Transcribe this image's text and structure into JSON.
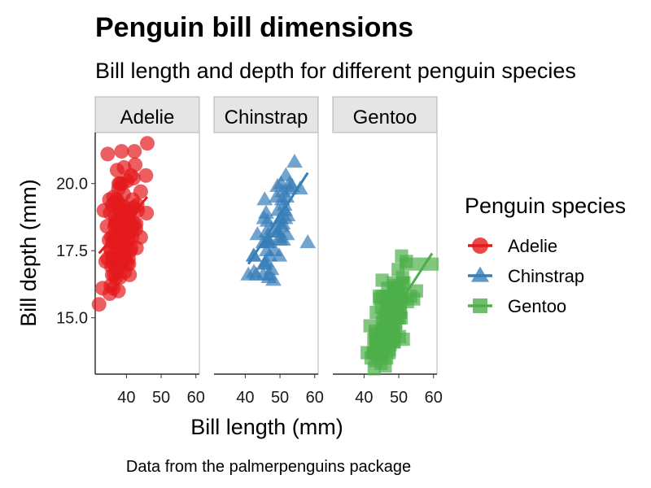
{
  "colors": {
    "Adelie": "#e41a1c",
    "Chinstrap": "#377eb8",
    "Gentoo": "#4daf4a",
    "strip_fill": "#e5e5e5",
    "strip_border": "#b3b3b3"
  },
  "chart_data": {
    "type": "scatter",
    "title": "Penguin bill dimensions",
    "subtitle": "Bill length and depth for different penguin species",
    "xlabel": "Bill length (mm)",
    "ylabel": "Bill depth (mm)",
    "caption": "Data from the palmerpenguins package",
    "legend_title": "Penguin species",
    "legend_position": "right",
    "xlim": [
      31,
      61
    ],
    "ylim": [
      12.9,
      21.9
    ],
    "x_ticks": [
      40,
      50,
      60
    ],
    "y_ticks": [
      15.0,
      17.5,
      20.0
    ],
    "y_tick_labels": [
      "15.0",
      "17.5",
      "20.0"
    ],
    "facets": [
      {
        "name": "Adelie",
        "shape": "circle",
        "regression": {
          "x": [
            32.1,
            46.0
          ],
          "y": [
            17.4,
            19.5
          ]
        },
        "points": [
          [
            32.1,
            15.5
          ],
          [
            33.1,
            16.1
          ],
          [
            33.5,
            19.0
          ],
          [
            34.0,
            17.1
          ],
          [
            34.4,
            18.4
          ],
          [
            34.6,
            21.1
          ],
          [
            34.6,
            17.2
          ],
          [
            35.0,
            17.9
          ],
          [
            35.1,
            19.4
          ],
          [
            35.2,
            15.9
          ],
          [
            35.3,
            18.9
          ],
          [
            35.5,
            16.2
          ],
          [
            35.5,
            17.5
          ],
          [
            35.6,
            17.5
          ],
          [
            35.7,
            16.9
          ],
          [
            35.7,
            18.0
          ],
          [
            35.9,
            16.6
          ],
          [
            35.9,
            19.2
          ],
          [
            36.0,
            17.1
          ],
          [
            36.0,
            17.8
          ],
          [
            36.2,
            16.1
          ],
          [
            36.2,
            17.2
          ],
          [
            36.2,
            17.3
          ],
          [
            36.3,
            19.5
          ],
          [
            36.4,
            17.0
          ],
          [
            36.5,
            16.6
          ],
          [
            36.5,
            18.0
          ],
          [
            36.6,
            17.8
          ],
          [
            36.6,
            18.4
          ],
          [
            36.7,
            18.8
          ],
          [
            36.7,
            19.3
          ],
          [
            36.8,
            18.5
          ],
          [
            36.9,
            18.6
          ],
          [
            37.0,
            16.5
          ],
          [
            37.0,
            16.9
          ],
          [
            37.2,
            18.1
          ],
          [
            37.2,
            19.4
          ],
          [
            37.3,
            16.8
          ],
          [
            37.3,
            17.8
          ],
          [
            37.3,
            20.5
          ],
          [
            37.5,
            18.5
          ],
          [
            37.6,
            17.0
          ],
          [
            37.6,
            19.1
          ],
          [
            37.6,
            19.3
          ],
          [
            37.7,
            16.0
          ],
          [
            37.7,
            18.7
          ],
          [
            37.7,
            19.8
          ],
          [
            37.8,
            17.1
          ],
          [
            37.8,
            18.1
          ],
          [
            37.8,
            20.0
          ],
          [
            37.9,
            18.6
          ],
          [
            38.1,
            16.5
          ],
          [
            38.1,
            17.0
          ],
          [
            38.1,
            18.6
          ],
          [
            38.2,
            18.1
          ],
          [
            38.2,
            20.0
          ],
          [
            38.3,
            19.2
          ],
          [
            38.5,
            17.9
          ],
          [
            38.6,
            17.0
          ],
          [
            38.6,
            17.2
          ],
          [
            38.6,
            21.2
          ],
          [
            38.7,
            19.0
          ],
          [
            38.8,
            17.2
          ],
          [
            38.8,
            17.6
          ],
          [
            38.8,
            20.0
          ],
          [
            38.9,
            17.8
          ],
          [
            38.9,
            18.8
          ],
          [
            39.0,
            17.1
          ],
          [
            39.0,
            17.5
          ],
          [
            39.1,
            18.7
          ],
          [
            39.2,
            18.6
          ],
          [
            39.2,
            19.6
          ],
          [
            39.3,
            20.6
          ],
          [
            39.5,
            16.7
          ],
          [
            39.5,
            17.4
          ],
          [
            39.6,
            17.2
          ],
          [
            39.6,
            17.7
          ],
          [
            39.6,
            18.8
          ],
          [
            39.7,
            17.7
          ],
          [
            39.7,
            18.4
          ],
          [
            39.8,
            19.1
          ],
          [
            40.1,
            18.9
          ],
          [
            40.2,
            17.0
          ],
          [
            40.2,
            20.1
          ],
          [
            40.3,
            18.0
          ],
          [
            40.5,
            17.9
          ],
          [
            40.5,
            18.9
          ],
          [
            40.6,
            17.2
          ],
          [
            40.6,
            18.6
          ],
          [
            40.7,
            17.0
          ],
          [
            40.8,
            18.4
          ],
          [
            40.9,
            16.6
          ],
          [
            40.9,
            18.9
          ],
          [
            41.1,
            17.5
          ],
          [
            41.1,
            18.2
          ],
          [
            41.1,
            19.0
          ],
          [
            41.3,
            17.6
          ],
          [
            41.3,
            20.3
          ],
          [
            41.4,
            18.5
          ],
          [
            41.5,
            18.3
          ],
          [
            41.6,
            18.0
          ],
          [
            41.8,
            19.4
          ],
          [
            42.0,
            20.2
          ],
          [
            42.1,
            19.1
          ],
          [
            42.2,
            18.5
          ],
          [
            42.3,
            21.2
          ],
          [
            42.5,
            20.7
          ],
          [
            42.7,
            18.3
          ],
          [
            42.8,
            18.5
          ],
          [
            42.9,
            17.6
          ],
          [
            43.1,
            19.2
          ],
          [
            43.2,
            19.0
          ],
          [
            44.1,
            19.7
          ],
          [
            44.1,
            18.0
          ],
          [
            45.6,
            20.3
          ],
          [
            45.8,
            18.9
          ],
          [
            46.0,
            21.5
          ]
        ]
      },
      {
        "name": "Chinstrap",
        "shape": "triangle",
        "regression": {
          "x": [
            40.9,
            58.0
          ],
          "y": [
            17.0,
            20.4
          ]
        },
        "points": [
          [
            40.9,
            16.6
          ],
          [
            42.4,
            17.3
          ],
          [
            42.5,
            16.7
          ],
          [
            42.5,
            17.3
          ],
          [
            43.2,
            16.6
          ],
          [
            43.5,
            18.1
          ],
          [
            45.2,
            16.6
          ],
          [
            45.2,
            17.8
          ],
          [
            45.4,
            18.7
          ],
          [
            45.5,
            17.0
          ],
          [
            45.6,
            19.4
          ],
          [
            45.7,
            17.0
          ],
          [
            45.9,
            17.1
          ],
          [
            46.0,
            18.9
          ],
          [
            46.1,
            18.2
          ],
          [
            46.2,
            17.5
          ],
          [
            46.4,
            17.8
          ],
          [
            46.4,
            18.6
          ],
          [
            46.5,
            17.9
          ],
          [
            46.6,
            17.8
          ],
          [
            46.7,
            17.9
          ],
          [
            46.8,
            16.5
          ],
          [
            46.9,
            16.6
          ],
          [
            47.0,
            17.3
          ],
          [
            47.5,
            16.8
          ],
          [
            47.6,
            18.3
          ],
          [
            48.1,
            16.4
          ],
          [
            48.5,
            17.5
          ],
          [
            49.0,
            19.5
          ],
          [
            49.2,
            18.2
          ],
          [
            49.3,
            19.9
          ],
          [
            49.5,
            19.0
          ],
          [
            49.6,
            18.2
          ],
          [
            49.7,
            18.6
          ],
          [
            49.8,
            17.3
          ],
          [
            49.9,
            18.0
          ],
          [
            50.1,
            17.9
          ],
          [
            50.2,
            18.7
          ],
          [
            50.3,
            20.0
          ],
          [
            50.5,
            18.4
          ],
          [
            50.6,
            19.4
          ],
          [
            50.7,
            19.7
          ],
          [
            50.8,
            18.5
          ],
          [
            50.9,
            17.9
          ],
          [
            51.3,
            19.2
          ],
          [
            51.4,
            19.0
          ],
          [
            51.5,
            18.7
          ],
          [
            51.7,
            20.3
          ],
          [
            51.9,
            19.5
          ],
          [
            52.0,
            18.1
          ],
          [
            52.2,
            18.8
          ],
          [
            52.7,
            19.8
          ],
          [
            52.8,
            20.0
          ],
          [
            53.5,
            19.9
          ],
          [
            54.2,
            20.8
          ],
          [
            55.8,
            19.8
          ],
          [
            58.0,
            17.8
          ]
        ]
      },
      {
        "name": "Gentoo",
        "shape": "square",
        "regression": {
          "x": [
            40.9,
            59.6
          ],
          "y": [
            13.7,
            17.4
          ]
        },
        "points": [
          [
            40.9,
            13.7
          ],
          [
            41.7,
            14.7
          ],
          [
            42.0,
            13.5
          ],
          [
            42.6,
            13.7
          ],
          [
            42.7,
            13.7
          ],
          [
            42.8,
            14.2
          ],
          [
            42.9,
            13.1
          ],
          [
            43.2,
            14.5
          ],
          [
            43.3,
            13.4
          ],
          [
            43.3,
            14.0
          ],
          [
            43.4,
            14.4
          ],
          [
            43.5,
            14.2
          ],
          [
            43.5,
            15.2
          ],
          [
            43.6,
            13.9
          ],
          [
            43.8,
            13.9
          ],
          [
            44.0,
            13.6
          ],
          [
            44.4,
            15.8
          ],
          [
            44.5,
            14.3
          ],
          [
            44.5,
            15.7
          ],
          [
            44.9,
            13.3
          ],
          [
            44.9,
            13.8
          ],
          [
            45.0,
            15.4
          ],
          [
            45.1,
            14.4
          ],
          [
            45.1,
            14.5
          ],
          [
            45.2,
            13.8
          ],
          [
            45.2,
            14.8
          ],
          [
            45.2,
            15.8
          ],
          [
            45.2,
            16.4
          ],
          [
            45.3,
            13.7
          ],
          [
            45.3,
            13.8
          ],
          [
            45.4,
            14.6
          ],
          [
            45.5,
            13.7
          ],
          [
            45.5,
            13.9
          ],
          [
            45.5,
            14.5
          ],
          [
            45.5,
            15.0
          ],
          [
            45.7,
            13.9
          ],
          [
            45.8,
            14.2
          ],
          [
            45.8,
            14.6
          ],
          [
            46.1,
            13.2
          ],
          [
            46.1,
            15.1
          ],
          [
            46.2,
            14.1
          ],
          [
            46.2,
            14.4
          ],
          [
            46.2,
            14.5
          ],
          [
            46.2,
            14.9
          ],
          [
            46.3,
            15.8
          ],
          [
            46.4,
            15.0
          ],
          [
            46.4,
            15.6
          ],
          [
            46.5,
            13.5
          ],
          [
            46.5,
            14.4
          ],
          [
            46.5,
            14.8
          ],
          [
            46.6,
            14.2
          ],
          [
            46.7,
            15.3
          ],
          [
            46.8,
            14.3
          ],
          [
            46.8,
            15.4
          ],
          [
            46.8,
            16.1
          ],
          [
            46.9,
            14.6
          ],
          [
            47.2,
            13.7
          ],
          [
            47.2,
            15.5
          ],
          [
            47.3,
            13.8
          ],
          [
            47.3,
            15.3
          ],
          [
            47.4,
            14.6
          ],
          [
            47.5,
            14.0
          ],
          [
            47.5,
            15.0
          ],
          [
            47.6,
            14.5
          ],
          [
            47.7,
            15.0
          ],
          [
            47.8,
            15.0
          ],
          [
            48.1,
            15.1
          ],
          [
            48.2,
            14.3
          ],
          [
            48.2,
            15.6
          ],
          [
            48.4,
            14.4
          ],
          [
            48.4,
            14.6
          ],
          [
            48.4,
            16.3
          ],
          [
            48.5,
            14.1
          ],
          [
            48.5,
            15.0
          ],
          [
            48.6,
            16.0
          ],
          [
            48.7,
            14.1
          ],
          [
            48.7,
            15.1
          ],
          [
            48.7,
            15.7
          ],
          [
            48.8,
            16.2
          ],
          [
            49.0,
            16.1
          ],
          [
            49.1,
            14.5
          ],
          [
            49.1,
            14.8
          ],
          [
            49.1,
            15.0
          ],
          [
            49.2,
            15.2
          ],
          [
            49.3,
            15.7
          ],
          [
            49.4,
            15.8
          ],
          [
            49.5,
            15.9
          ],
          [
            49.5,
            16.1
          ],
          [
            49.6,
            15.0
          ],
          [
            49.6,
            16.0
          ],
          [
            49.8,
            15.9
          ],
          [
            49.8,
            16.8
          ],
          [
            49.9,
            16.1
          ],
          [
            50.0,
            15.2
          ],
          [
            50.0,
            15.9
          ],
          [
            50.1,
            15.0
          ],
          [
            50.2,
            14.3
          ],
          [
            50.4,
            15.3
          ],
          [
            50.4,
            15.7
          ],
          [
            50.5,
            15.2
          ],
          [
            50.5,
            15.9
          ],
          [
            50.7,
            15.0
          ],
          [
            50.8,
            15.7
          ],
          [
            50.8,
            17.3
          ],
          [
            51.1,
            16.3
          ],
          [
            51.1,
            16.5
          ],
          [
            51.3,
            14.2
          ],
          [
            51.5,
            16.3
          ],
          [
            52.1,
            17.0
          ],
          [
            52.2,
            17.1
          ],
          [
            52.5,
            15.6
          ],
          [
            53.4,
            15.8
          ],
          [
            54.3,
            15.7
          ],
          [
            55.1,
            16.0
          ],
          [
            55.9,
            17.0
          ],
          [
            59.6,
            17.0
          ]
        ]
      }
    ]
  }
}
